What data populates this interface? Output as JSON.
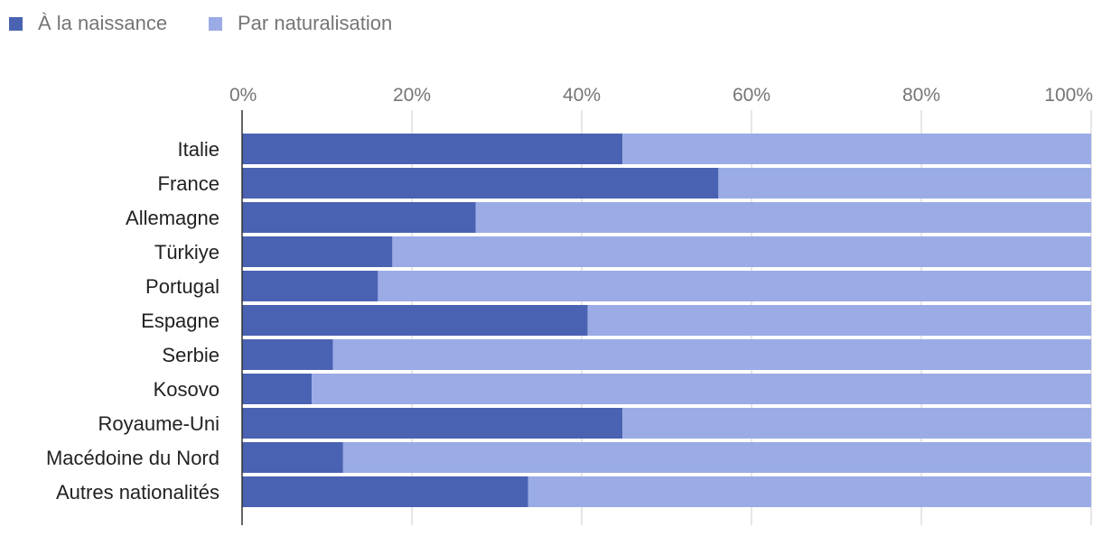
{
  "chart_data": {
    "type": "bar",
    "orientation": "horizontal",
    "stacked": true,
    "normalized_percent": true,
    "title": "",
    "xlabel": "",
    "ylabel": "",
    "xlim": [
      0,
      100
    ],
    "x_ticks": [
      0,
      20,
      40,
      60,
      80,
      100
    ],
    "x_tick_labels": [
      "0%",
      "20%",
      "40%",
      "60%",
      "80%",
      "100%"
    ],
    "x_axis_position": "top",
    "grid": true,
    "legend_position": "top-left",
    "categories": [
      "Italie",
      "France",
      "Allemagne",
      "Türkiye",
      "Portugal",
      "Espagne",
      "Serbie",
      "Kosovo",
      "Royaume-Uni",
      "Macédoine du Nord",
      "Autres nationalités"
    ],
    "series": [
      {
        "name": "À la naissance",
        "color": "#4a62b2",
        "values": [
          44.8,
          56.1,
          27.5,
          17.7,
          16.0,
          40.7,
          10.7,
          8.2,
          44.8,
          11.9,
          33.7
        ]
      },
      {
        "name": "Par naturalisation",
        "color": "#9aabe6",
        "values": [
          55.2,
          43.9,
          72.5,
          82.3,
          84.0,
          59.3,
          89.3,
          91.8,
          55.2,
          88.1,
          66.3
        ]
      }
    ]
  }
}
